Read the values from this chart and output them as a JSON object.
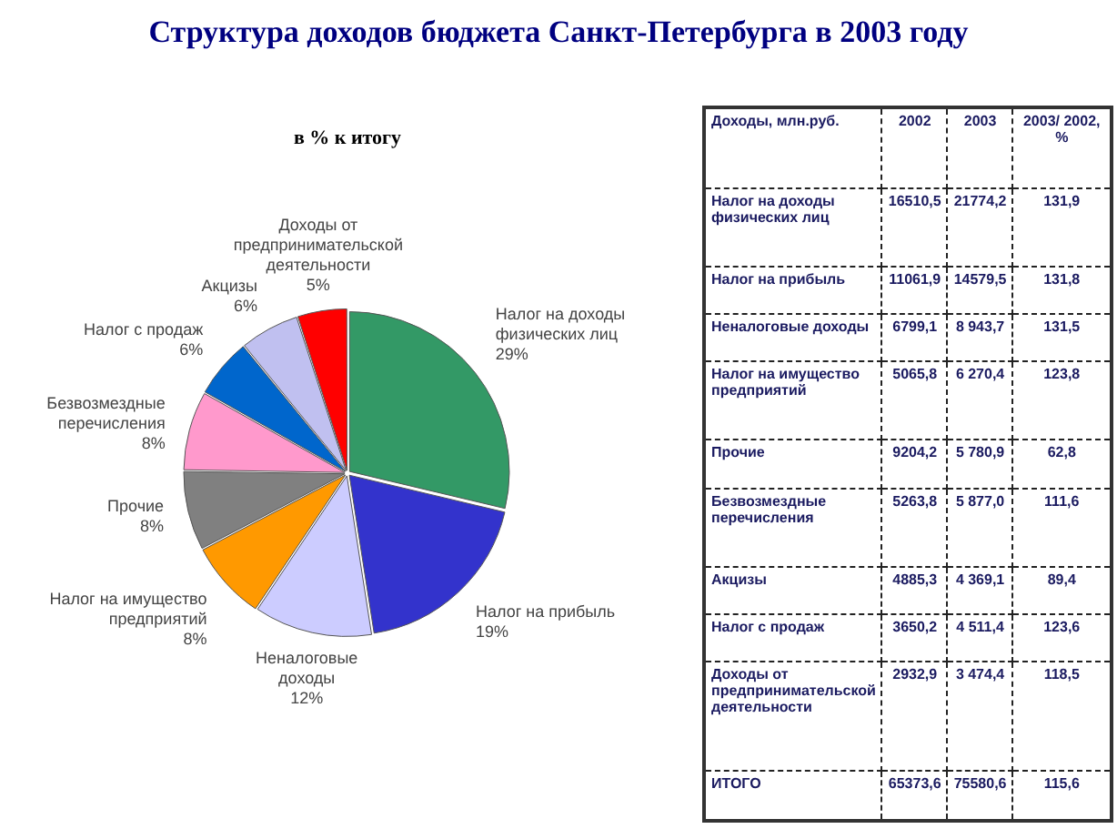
{
  "chart_data": [
    {
      "type": "pie",
      "title": "Структура доходов бюджета Санкт-Петербурга в 2003 году",
      "subtitle": "в % к итогу",
      "categories": [
        "Налог на доходы физических лиц",
        "Налог на прибыль",
        "Неналоговые доходы",
        "Налог на имущество предприятий",
        "Прочие",
        "Безвозмездные перечисления",
        "Налог с продаж",
        "Акцизы",
        "Доходы от предпринимательской деятельности"
      ],
      "values": [
        29,
        19,
        12,
        8,
        8,
        8,
        6,
        6,
        5
      ],
      "value_labels": [
        "29%",
        "19%",
        "12%",
        "8%",
        "8%",
        "8%",
        "6%",
        "6%",
        "5%"
      ],
      "colors": [
        "#339966",
        "#3333cc",
        "#ccccff",
        "#ff9900",
        "#808080",
        "#ff99cc",
        "#0066cc",
        "#c0c0f0",
        "#ff0000"
      ],
      "legend": false
    },
    {
      "type": "other",
      "legend_title": "Доходы, млн.руб.",
      "categories": [
        "Налог на доходы физических лиц",
        "Налог на прибыль",
        "Неналоговые доходы",
        "Налог на имущество предприятий",
        "Прочие",
        "Безвозмездные перечисления",
        "Акцизы",
        "Налог с продаж",
        "Доходы от предпринимательской деятельности",
        "ИТОГО"
      ],
      "series": [
        {
          "name": "2002",
          "values": [
            16510.5,
            11061.9,
            6799.1,
            5065.8,
            9204.2,
            5263.8,
            4885.3,
            3650.2,
            2932.9,
            65373.6
          ],
          "value_labels": [
            "16510,5",
            "11061,9",
            "6799,1",
            "5065,8",
            "9204,2",
            "5263,8",
            "4885,3",
            "3650,2",
            "2932,9",
            "65373,6"
          ]
        },
        {
          "name": "2003",
          "values": [
            21774.2,
            14579.5,
            8943.7,
            6270.4,
            5780.9,
            5877.0,
            4369.1,
            4511.4,
            3474.4,
            75580.6
          ],
          "value_labels": [
            "21774,2",
            "14579,5",
            "8 943,7",
            "6 270,4",
            "5 780,9",
            "5 877,0",
            "4 369,1",
            "4 511,4",
            "3 474,4",
            "75580,6"
          ]
        },
        {
          "name": "2003/ 2002, %",
          "values": [
            131.9,
            131.8,
            131.5,
            123.8,
            62.8,
            111.6,
            89.4,
            123.6,
            118.5,
            115.6
          ],
          "value_labels": [
            "131,9",
            "131,8",
            "131,5",
            "123,8",
            "62,8",
            "111,6",
            "89,4",
            "123,6",
            "118,5",
            "115,6"
          ]
        }
      ],
      "data_labels": true
    }
  ]
}
